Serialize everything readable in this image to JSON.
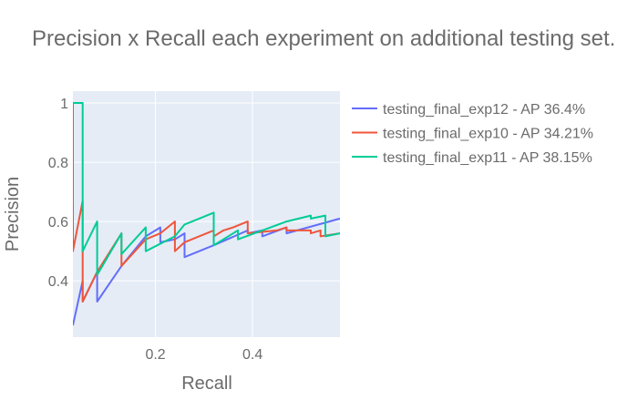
{
  "chart_data": {
    "type": "line",
    "title": "Precision x Recall each experiment on additional testing set.",
    "xlabel": "Recall",
    "ylabel": "Precision",
    "xlim": [
      0.03,
      0.58
    ],
    "ylim": [
      0.21,
      1.04
    ],
    "x_ticks": [
      0.2,
      0.4
    ],
    "x_tick_labels": [
      "0.2",
      "0.4"
    ],
    "y_ticks": [
      0.4,
      0.6,
      0.8,
      1.0
    ],
    "y_tick_labels": [
      "0.4",
      "0.6",
      "0.8",
      "1"
    ],
    "grid": true,
    "legend_position": "right",
    "series": [
      {
        "name": "testing_final_exp12 - AP 36.4%",
        "color": "#636efa",
        "x": [
          0.03,
          0.05,
          0.05,
          0.08,
          0.08,
          0.13,
          0.13,
          0.18,
          0.21,
          0.21,
          0.24,
          0.26,
          0.26,
          0.32,
          0.32,
          0.39,
          0.39,
          0.42,
          0.42,
          0.47,
          0.47,
          0.58
        ],
        "y": [
          0.25,
          0.4,
          0.33,
          0.43,
          0.33,
          0.45,
          0.45,
          0.55,
          0.58,
          0.53,
          0.54,
          0.56,
          0.48,
          0.52,
          0.52,
          0.57,
          0.56,
          0.57,
          0.55,
          0.58,
          0.56,
          0.61
        ]
      },
      {
        "name": "testing_final_exp10 - AP 34.21%",
        "color": "#ef553b",
        "x": [
          0.03,
          0.03,
          0.05,
          0.05,
          0.08,
          0.08,
          0.13,
          0.13,
          0.18,
          0.21,
          0.24,
          0.24,
          0.26,
          0.32,
          0.32,
          0.34,
          0.36,
          0.39,
          0.39,
          0.45,
          0.47,
          0.47,
          0.52,
          0.52,
          0.54,
          0.54,
          0.58
        ],
        "y": [
          1.0,
          0.5,
          0.67,
          0.33,
          0.43,
          0.43,
          0.56,
          0.45,
          0.54,
          0.56,
          0.6,
          0.5,
          0.53,
          0.57,
          0.55,
          0.57,
          0.58,
          0.6,
          0.56,
          0.57,
          0.58,
          0.57,
          0.57,
          0.56,
          0.57,
          0.55,
          0.56
        ]
      },
      {
        "name": "testing_final_exp11 - AP 38.15%",
        "color": "#00cc96",
        "x": [
          0.03,
          0.05,
          0.05,
          0.08,
          0.08,
          0.13,
          0.13,
          0.18,
          0.18,
          0.24,
          0.26,
          0.32,
          0.32,
          0.37,
          0.37,
          0.42,
          0.47,
          0.47,
          0.52,
          0.52,
          0.55,
          0.55,
          0.58
        ],
        "y": [
          1.0,
          1.0,
          0.5,
          0.6,
          0.42,
          0.56,
          0.49,
          0.58,
          0.5,
          0.55,
          0.59,
          0.63,
          0.52,
          0.57,
          0.54,
          0.57,
          0.6,
          0.6,
          0.62,
          0.61,
          0.62,
          0.55,
          0.56
        ]
      }
    ]
  }
}
